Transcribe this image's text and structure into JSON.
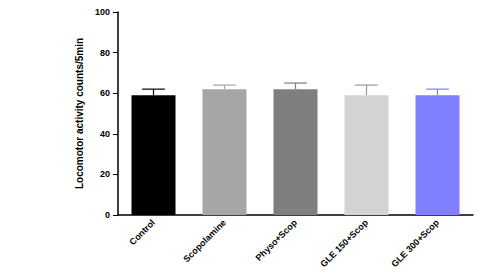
{
  "chart_data": {
    "type": "bar",
    "categories": [
      "Control",
      "Scopolamine",
      "Physo+Scop",
      "GLE 150+Scop",
      "GLE 300+Scop"
    ],
    "values": [
      59,
      62,
      62,
      59,
      59
    ],
    "errors": [
      3,
      2,
      3,
      5,
      3
    ],
    "colors": [
      "#000000",
      "#a6a6a6",
      "#7f7f7f",
      "#d3d3d3",
      "#7f7fff"
    ],
    "y_label": "Locomotor activity counts/5min",
    "ylim": [
      0,
      100
    ],
    "yticks": [
      0,
      20,
      40,
      60,
      80,
      100
    ],
    "grid": false
  }
}
